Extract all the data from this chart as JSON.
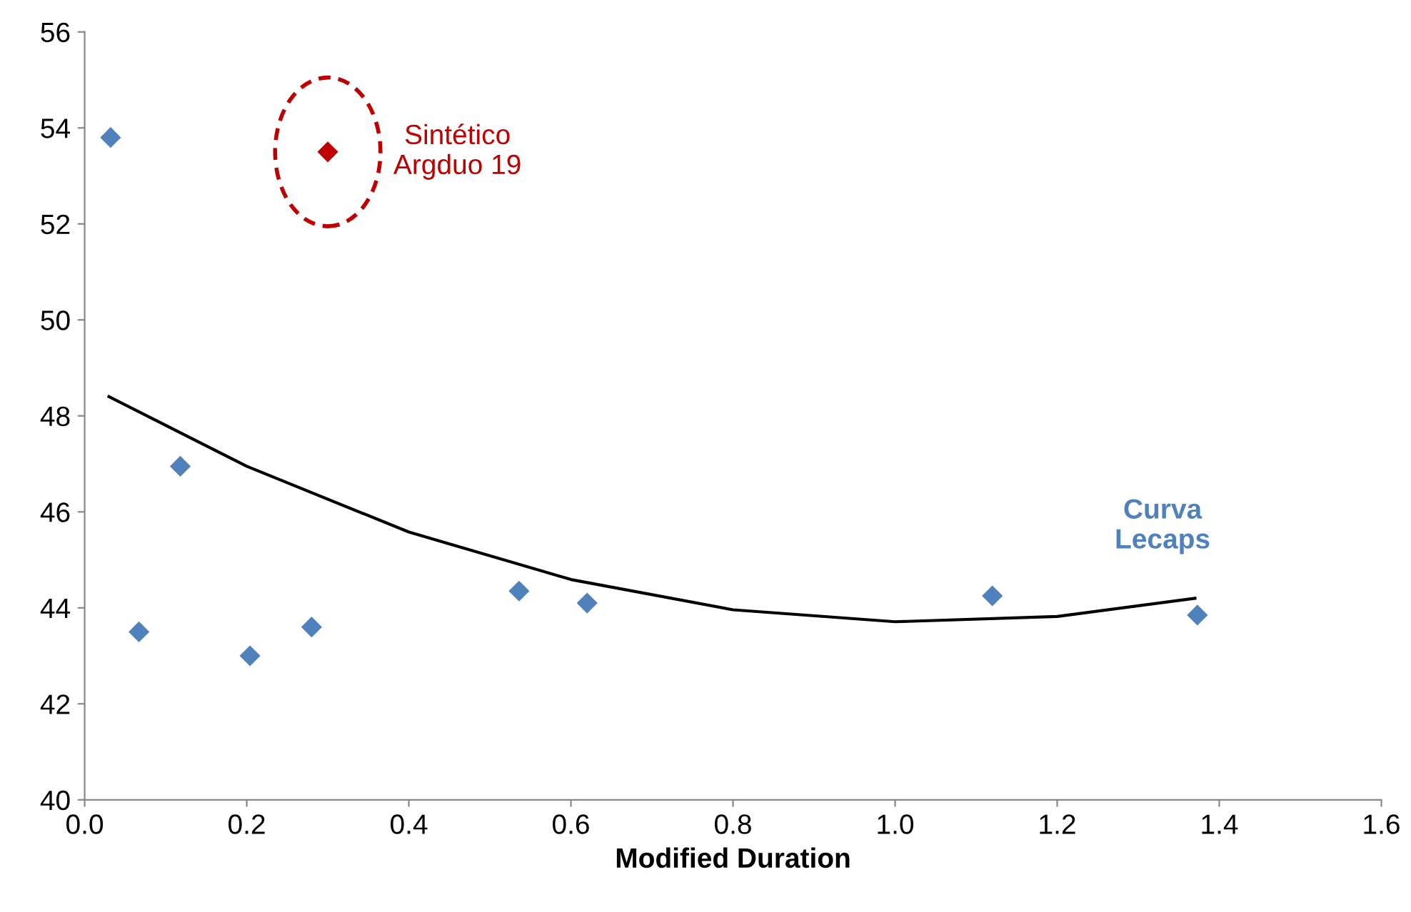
{
  "chart_data": {
    "type": "scatter",
    "xlabel": "Modified Duration",
    "series": [
      {
        "marker": "diamond",
        "color": "#4f81bd",
        "x": [
          0.032,
          0.067,
          0.118,
          0.204,
          0.28,
          0.536,
          0.62,
          1.12,
          1.373
        ],
        "values": [
          53.8,
          43.5,
          46.95,
          43.0,
          43.6,
          44.35,
          44.1,
          44.25,
          43.85
        ]
      },
      {
        "marker": "diamond",
        "color": "#c00000",
        "x": [
          0.3
        ],
        "values": [
          53.5
        ]
      },
      {
        "type": "line",
        "marker": "none",
        "color": "#000000",
        "x": [
          0.03,
          0.2,
          0.4,
          0.6,
          0.8,
          1.0,
          1.2,
          1.37
        ],
        "values": [
          48.4,
          46.95,
          45.58,
          44.59,
          43.96,
          43.71,
          43.82,
          44.2
        ]
      }
    ],
    "annotations": [
      {
        "text": "Sintético\nArgduo 19",
        "x": 0.3,
        "y": 53.5
      },
      {
        "text": "Curva\nLecaps",
        "x": 1.37,
        "y": 44.2
      }
    ],
    "xlim": [
      0,
      1.6
    ],
    "ylim": [
      40,
      56
    ],
    "xticks": [
      {
        "value": 0,
        "label": "0.0"
      },
      {
        "value": 0.2,
        "label": "0.2"
      },
      {
        "value": 0.4,
        "label": "0.4"
      },
      {
        "value": 0.6,
        "label": "0.6"
      },
      {
        "value": 0.8,
        "label": "0.8"
      },
      {
        "value": 1.0,
        "label": "1.0"
      },
      {
        "value": 1.2,
        "label": "1.2"
      },
      {
        "value": 1.4,
        "label": "1.4"
      },
      {
        "value": 1.6,
        "label": "1.6"
      }
    ],
    "yticks": [
      40,
      42,
      44,
      46,
      48,
      50,
      52,
      54,
      56
    ],
    "grid": false,
    "legend": false
  }
}
